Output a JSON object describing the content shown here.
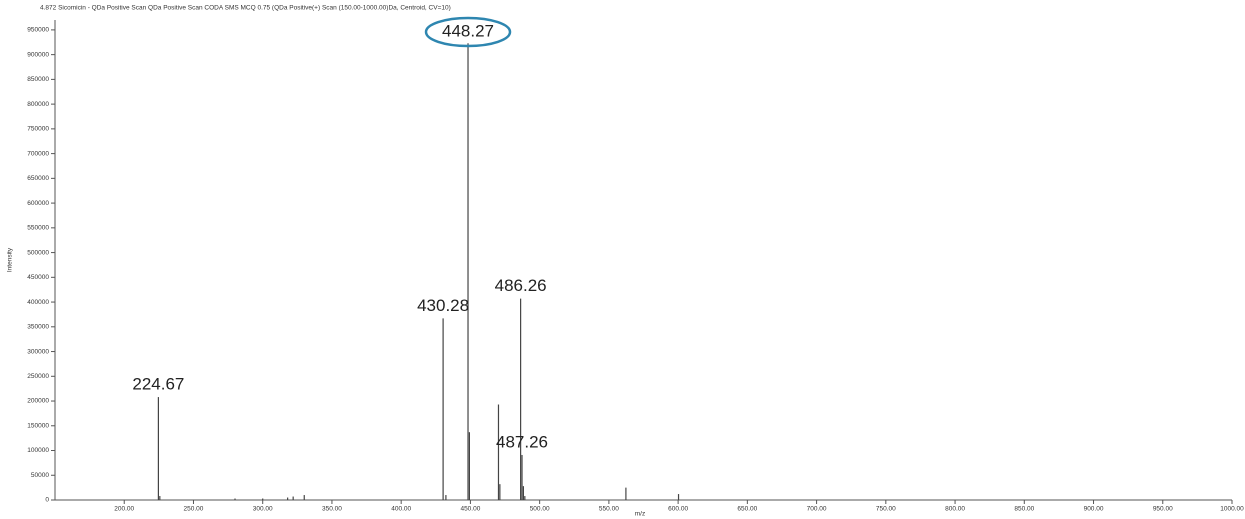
{
  "chart_data": {
    "type": "stem",
    "title": "4.872 Sicomicin - QDa Positive Scan QDa Positive Scan CODA SMS MCQ 0.75 (QDa Positive(+) Scan (150.00-1000.00)Da, Centroid, CV=10)",
    "x_label": "m/z",
    "y_label": "Intensity",
    "color": "#444444",
    "x": [
      224.67,
      225.7,
      280,
      300,
      318,
      322,
      330,
      430.28,
      432.3,
      448.27,
      449.27,
      470.27,
      471.27,
      486.26,
      487.26,
      488.26,
      489.3,
      562.3,
      600.3
    ],
    "values": [
      208000,
      8000,
      3000,
      3000,
      5000,
      7000,
      10000,
      367000,
      10000,
      923000,
      137000,
      193000,
      32000,
      407000,
      91000,
      28000,
      8000,
      25000,
      12000
    ],
    "annotations": [
      {
        "text": "224.67",
        "x": 224.67
      },
      {
        "text": "430.28",
        "x": 430.28
      },
      {
        "text": "448.27",
        "x": 448.27,
        "circled": true,
        "circle_color": "#2e86b0"
      },
      {
        "text": "486.26",
        "x": 486.26
      },
      {
        "text": "487.26",
        "x": 487.26
      }
    ],
    "xlim": [
      150,
      1000
    ],
    "ylim": [
      0,
      970000
    ],
    "xticks": [
      {
        "value": 200,
        "label": "200.00"
      },
      {
        "value": 250,
        "label": "250.00"
      },
      {
        "value": 300,
        "label": "300.00"
      },
      {
        "value": 350,
        "label": "350.00"
      },
      {
        "value": 400,
        "label": "400.00"
      },
      {
        "value": 450,
        "label": "450.00"
      },
      {
        "value": 500,
        "label": "500.00"
      },
      {
        "value": 550,
        "label": "550.00"
      },
      {
        "value": 600,
        "label": "600.00"
      },
      {
        "value": 650,
        "label": "650.00"
      },
      {
        "value": 700,
        "label": "700.00"
      },
      {
        "value": 750,
        "label": "750.00"
      },
      {
        "value": 800,
        "label": "800.00"
      },
      {
        "value": 850,
        "label": "850.00"
      },
      {
        "value": 900,
        "label": "900.00"
      },
      {
        "value": 950,
        "label": "950.00"
      },
      {
        "value": 1000,
        "label": "1000.00"
      }
    ],
    "yticks": [
      0,
      50000,
      100000,
      150000,
      200000,
      250000,
      300000,
      350000,
      400000,
      450000,
      500000,
      550000,
      600000,
      650000,
      700000,
      750000,
      800000,
      850000,
      900000,
      950000
    ],
    "grid": false
  }
}
